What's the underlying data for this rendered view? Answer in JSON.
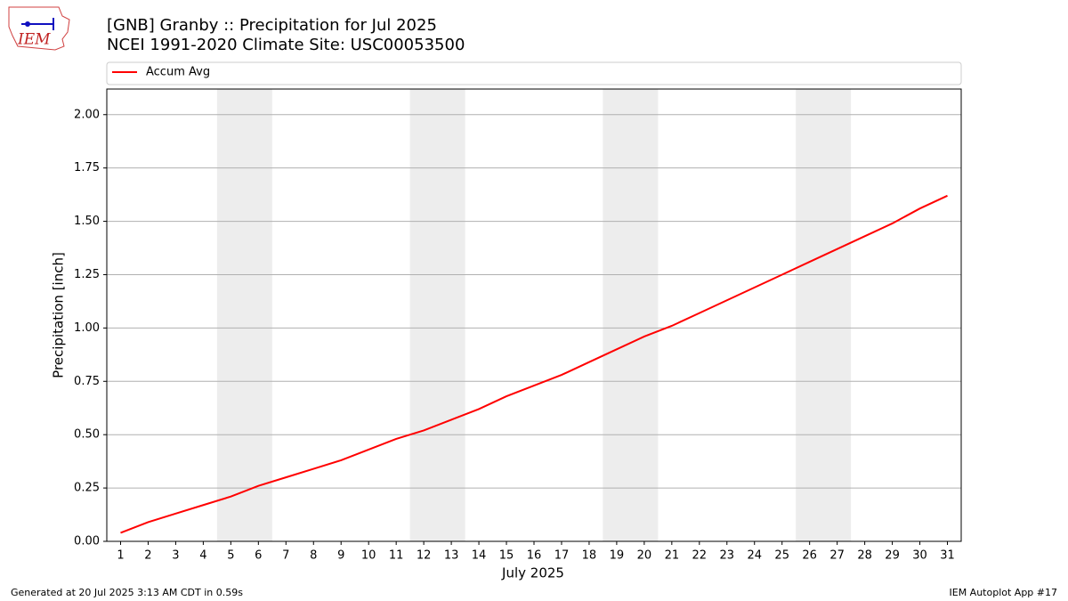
{
  "logo_text": "IEM",
  "footer_left": "Generated at 20 Jul 2025 3:13 AM CDT in 0.59s",
  "footer_right": "IEM Autoplot App #17",
  "chart_data": {
    "type": "line",
    "title": "[GNB] Granby :: Precipitation for Jul 2025",
    "subtitle": "NCEI 1991-2020 Climate Site: USC00053500",
    "xlabel": "July 2025",
    "ylabel": "Precipitation [inch]",
    "x": [
      1,
      2,
      3,
      4,
      5,
      6,
      7,
      8,
      9,
      10,
      11,
      12,
      13,
      14,
      15,
      16,
      17,
      18,
      19,
      20,
      21,
      22,
      23,
      24,
      25,
      26,
      27,
      28,
      29,
      30,
      31
    ],
    "series": [
      {
        "name": "Accum Avg",
        "color": "#ff0000",
        "values": [
          0.04,
          0.09,
          0.13,
          0.17,
          0.21,
          0.26,
          0.3,
          0.34,
          0.38,
          0.43,
          0.48,
          0.52,
          0.57,
          0.62,
          0.68,
          0.73,
          0.78,
          0.84,
          0.9,
          0.96,
          1.01,
          1.07,
          1.13,
          1.19,
          1.25,
          1.31,
          1.37,
          1.43,
          1.49,
          1.56,
          1.62
        ]
      }
    ],
    "xlim": [
      0.5,
      31.5
    ],
    "xticks": [
      1,
      2,
      3,
      4,
      5,
      6,
      7,
      8,
      9,
      10,
      11,
      12,
      13,
      14,
      15,
      16,
      17,
      18,
      19,
      20,
      21,
      22,
      23,
      24,
      25,
      26,
      27,
      28,
      29,
      30,
      31
    ],
    "ylim": [
      0,
      2.12
    ],
    "yticks": [
      {
        "value": 0,
        "label": "0.00"
      },
      {
        "value": 0.25,
        "label": "0.25"
      },
      {
        "value": 0.5,
        "label": "0.50"
      },
      {
        "value": 0.75,
        "label": "0.75"
      },
      {
        "value": 1,
        "label": "1.00"
      },
      {
        "value": 1.25,
        "label": "1.25"
      },
      {
        "value": 1.5,
        "label": "1.50"
      },
      {
        "value": 1.75,
        "label": "1.75"
      },
      {
        "value": 2,
        "label": "2.00"
      }
    ],
    "shaded_spans": [
      [
        4.5,
        6.5
      ],
      [
        11.5,
        13.5
      ],
      [
        18.5,
        20.5
      ],
      [
        25.5,
        27.5
      ]
    ],
    "shade_color": "#ededed",
    "grid": true,
    "legend_position": "top"
  }
}
